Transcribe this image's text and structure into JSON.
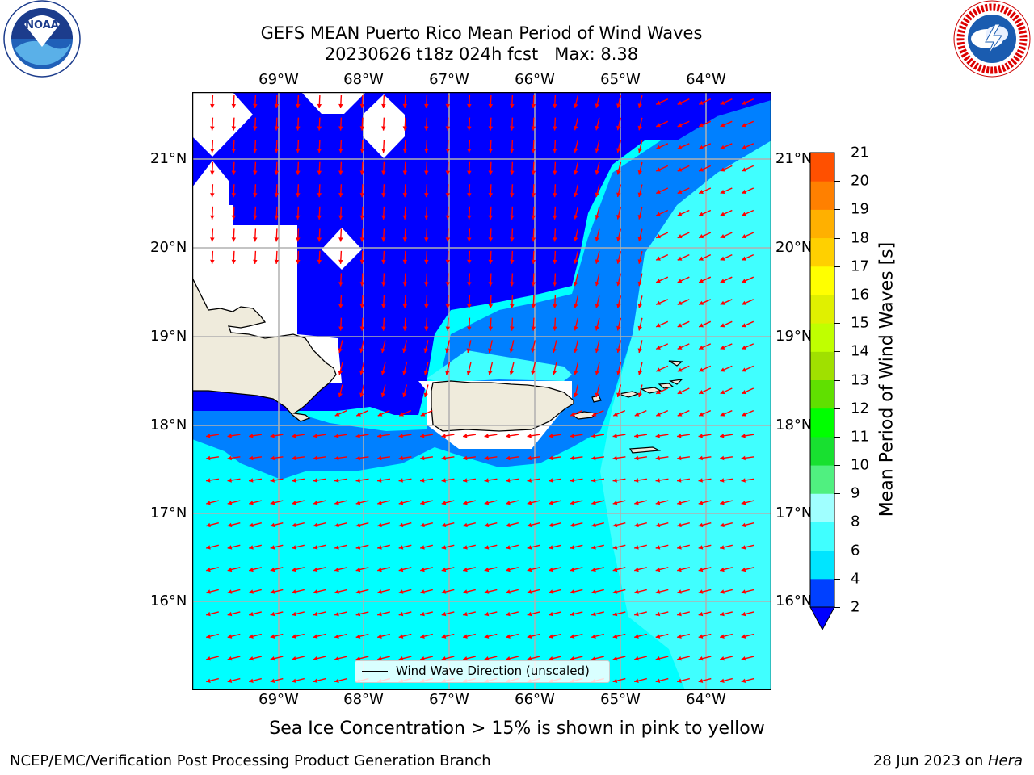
{
  "title": {
    "line1": "GEFS MEAN Puerto Rico Mean Period of Wind Waves",
    "line2": "20230626 t18z 024h fcst   Max: 8.38"
  },
  "map": {
    "lon_labels": [
      "69°W",
      "68°W",
      "67°W",
      "66°W",
      "65°W",
      "64°W"
    ],
    "lat_labels": [
      "21°N",
      "20°N",
      "19°N",
      "18°N",
      "17°N",
      "16°N"
    ],
    "legend_label": "Wind Wave Direction (unscaled)",
    "arrow_color": "#ff0000",
    "land_color": "#efebdc",
    "grid_color": "#b0b0b0"
  },
  "colorbar": {
    "title": "Mean Period of Wind Waves [s]",
    "ticks": [
      "2",
      "4",
      "6",
      "8",
      "9",
      "10",
      "11",
      "12",
      "13",
      "14",
      "15",
      "16",
      "17",
      "18",
      "19",
      "20",
      "21"
    ],
    "colors": [
      "#0040ff",
      "#00e5ff",
      "#40ffff",
      "#a0ffff",
      "#50f080",
      "#18e030",
      "#00ff00",
      "#60e000",
      "#a0e000",
      "#c0ff00",
      "#e0f000",
      "#ffff00",
      "#ffd000",
      "#ffb000",
      "#ff8000",
      "#ff5000",
      "#ff2000",
      "#ff0000"
    ],
    "under_color": "#0000ff"
  },
  "note": "Sea Ice Concentration > 15% is shown in pink to yellow",
  "footer": {
    "left": "NCEP/EMC/Verification Post Processing Product Generation Branch",
    "right_date": "28 Jun 2023 on ",
    "right_host": "Hera"
  },
  "logos": {
    "noaa_text": "NOAA",
    "nws_text": "NATIONAL WEATHER SERVICE"
  }
}
